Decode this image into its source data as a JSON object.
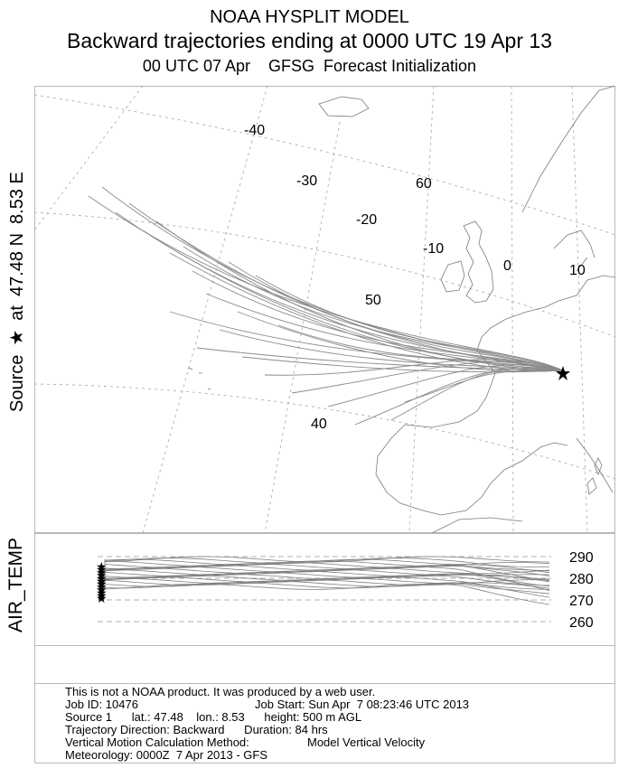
{
  "header": {
    "title": "NOAA HYSPLIT MODEL",
    "subtitle": "Backward trajectories ending at 0000 UTC 19 Apr 13",
    "init_line": "00 UTC 07 Apr    GFSG  Forecast Initialization"
  },
  "source_label": {
    "word": "Source",
    "star": "★",
    "at": "at",
    "lat": "47.48 N",
    "lon": "8.53 E"
  },
  "map": {
    "longitude_labels": [
      "-40",
      "-30",
      "-20",
      "-10",
      "0",
      "10"
    ],
    "latitude_labels": [
      "60",
      "50",
      "40"
    ],
    "trajectory_color": "#8a8a8a",
    "coastline_color": "#7a7a7a",
    "grid_color": "#b0b0b0"
  },
  "vertical_panel": {
    "label": "AIR_TEMP",
    "ticks": [
      "290",
      "280",
      "270",
      "260"
    ]
  },
  "footer": {
    "line1": "This is not a NOAA product. It was produced by a web user.",
    "job_id": "Job ID: 10476",
    "job_start": "Job Start: Sun Apr  7 08:23:46 UTC 2013",
    "source_line": "Source 1      lat.: 47.48    lon.: 8.53      height: 500 m AGL",
    "direction_line": "Trajectory Direction: Backward      Duration: 84 hrs",
    "vertical_method_label": "Vertical Motion Calculation Method:",
    "vertical_method_value": "Model Vertical Velocity",
    "meteorology_line": "Meteorology: 0000Z  7 Apr 2013 - GFS"
  }
}
